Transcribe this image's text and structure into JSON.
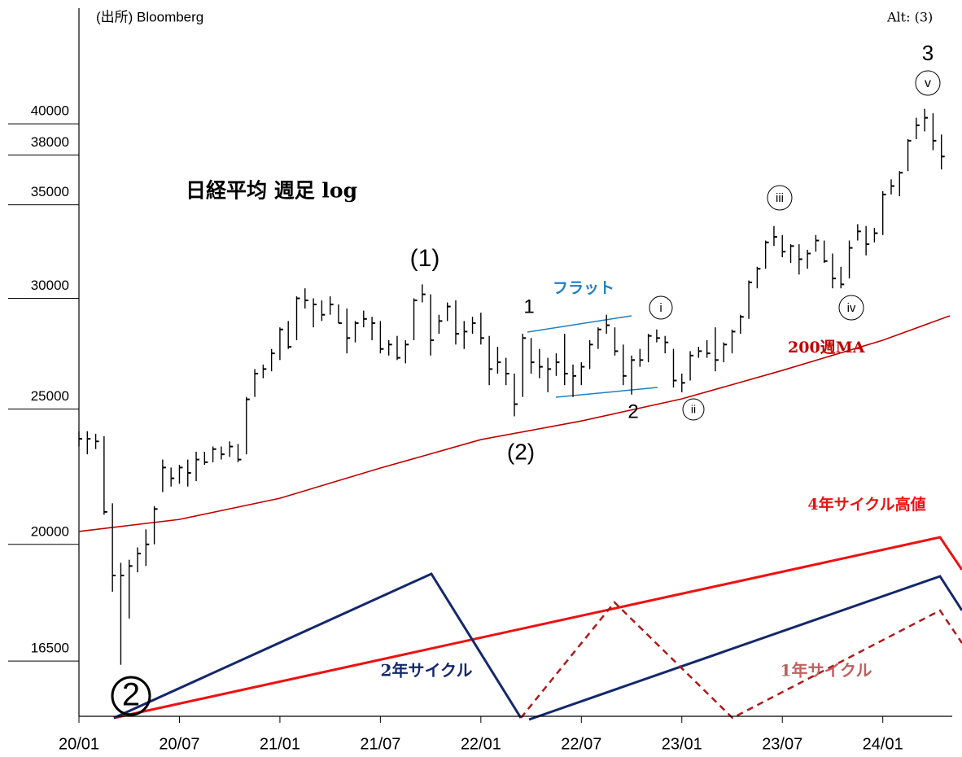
{
  "chart_data": {
    "type": "ohlc",
    "source": "(出所) Bloomberg",
    "alt_label": "Alt: (3)",
    "title": "日経平均 週足 log",
    "log_scale": true,
    "color": "#000000",
    "xlim": [
      0,
      52
    ],
    "xticks": [
      {
        "value": 0,
        "label": "20/01"
      },
      {
        "value": 6,
        "label": "20/07"
      },
      {
        "value": 12,
        "label": "21/01"
      },
      {
        "value": 18,
        "label": "21/07"
      },
      {
        "value": 24,
        "label": "22/01"
      },
      {
        "value": 30,
        "label": "22/07"
      },
      {
        "value": 36,
        "label": "23/01"
      },
      {
        "value": 42,
        "label": "23/07"
      },
      {
        "value": 48,
        "label": "24/01"
      }
    ],
    "ylim": [
      15065,
      48400
    ],
    "yticks": [
      16500,
      20000,
      25000,
      30000,
      35000,
      38000,
      40000
    ],
    "x": [
      0,
      0.5,
      1,
      1.5,
      2,
      2.5,
      3,
      3.5,
      4,
      4.5,
      5,
      5.5,
      6,
      6.5,
      7,
      7.5,
      8,
      8.5,
      9,
      9.5,
      10,
      10.5,
      11,
      11.5,
      12,
      12.5,
      13,
      13.5,
      14,
      14.5,
      15,
      15.5,
      16,
      16.5,
      17,
      17.5,
      18,
      18.5,
      19,
      19.5,
      20,
      20.5,
      21,
      21.5,
      22,
      22.5,
      23,
      23.5,
      24,
      24.5,
      25,
      25.5,
      26,
      26.5,
      27,
      27.5,
      28,
      28.5,
      29,
      29.5,
      30,
      30.5,
      31,
      31.5,
      32,
      32.5,
      33,
      33.5,
      34,
      34.5,
      35,
      35.5,
      36,
      36.5,
      37,
      37.5,
      38,
      38.5,
      39,
      39.5,
      40,
      40.5,
      41,
      41.5,
      42,
      42.5,
      43,
      43.5,
      44,
      44.5,
      45,
      45.5,
      46,
      46.5,
      47,
      47.5,
      48,
      48.5,
      49,
      49.5,
      50,
      50.5,
      51,
      51.5
    ],
    "high": [
      24100,
      24100,
      24000,
      23900,
      21400,
      19400,
      19500,
      19900,
      20500,
      21300,
      23000,
      22700,
      22800,
      23000,
      23300,
      23300,
      23500,
      23500,
      23700,
      23600,
      25500,
      26700,
      26900,
      27600,
      28600,
      28900,
      30100,
      30500,
      30000,
      29900,
      30100,
      29700,
      29500,
      28900,
      29400,
      29100,
      28900,
      28000,
      28200,
      28000,
      30000,
      30700,
      30200,
      29200,
      29800,
      29900,
      28900,
      29100,
      29300,
      28200,
      27700,
      27200,
      26500,
      28300,
      28100,
      27600,
      27200,
      27400,
      28300,
      26900,
      27000,
      28000,
      28600,
      29200,
      28600,
      27800,
      27300,
      27600,
      28300,
      28500,
      28200,
      27600,
      26500,
      27500,
      27700,
      28000,
      28600,
      27900,
      28500,
      29200,
      30900,
      31600,
      33000,
      33800,
      33300,
      32800,
      32800,
      32500,
      33300,
      33000,
      32300,
      31600,
      33000,
      33900,
      33800,
      33700,
      35800,
      36500,
      37000,
      39000,
      40400,
      41000,
      40700,
      39300
    ],
    "low": [
      23500,
      23200,
      23400,
      21000,
      18500,
      16400,
      17700,
      19100,
      19300,
      20000,
      21800,
      22000,
      22100,
      22000,
      22200,
      22800,
      22900,
      23000,
      23100,
      22900,
      23200,
      25500,
      26300,
      26600,
      27100,
      27600,
      28000,
      29500,
      28600,
      28900,
      29200,
      28800,
      27400,
      27900,
      28600,
      28000,
      27400,
      27300,
      27100,
      26950,
      28000,
      29800,
      27300,
      28300,
      28900,
      27800,
      27600,
      28300,
      27800,
      26000,
      26500,
      26000,
      24700,
      25500,
      26500,
      26300,
      25700,
      26400,
      26000,
      25500,
      26000,
      26700,
      27600,
      28300,
      27300,
      26000,
      25600,
      26800,
      27000,
      27900,
      27400,
      25900,
      25700,
      26200,
      27200,
      27200,
      26600,
      27000,
      27400,
      28300,
      29000,
      30500,
      31500,
      32700,
      32100,
      31800,
      31200,
      31500,
      32400,
      31800,
      30500,
      30500,
      31000,
      33000,
      32200,
      32900,
      33300,
      35600,
      35500,
      37000,
      39000,
      39500,
      38300,
      37100
    ],
    "close": [
      23800,
      23800,
      23700,
      21100,
      19000,
      19000,
      19300,
      19700,
      20000,
      21200,
      22700,
      22300,
      22700,
      22500,
      23000,
      22900,
      23400,
      23200,
      23500,
      23000,
      25400,
      26500,
      26700,
      27400,
      28500,
      27700,
      30000,
      29900,
      29700,
      29200,
      29700,
      28800,
      28100,
      28800,
      29000,
      28800,
      27600,
      27800,
      27200,
      27800,
      29900,
      30200,
      28000,
      28900,
      29600,
      28300,
      28400,
      28800,
      28100,
      26700,
      27000,
      26500,
      25200,
      28100,
      27000,
      26800,
      26700,
      27000,
      26500,
      26400,
      26800,
      27800,
      28500,
      28700,
      27500,
      26400,
      27100,
      27100,
      28200,
      28100,
      27900,
      26200,
      26100,
      27300,
      27500,
      27400,
      27100,
      27800,
      28400,
      29100,
      30800,
      31500,
      32900,
      33200,
      32400,
      32700,
      32000,
      32300,
      33000,
      31900,
      31000,
      30700,
      32600,
      33500,
      32800,
      33400,
      35600,
      36100,
      36900,
      38900,
      39900,
      40400,
      38900,
      37900
    ],
    "ma": {
      "name": "200週MA",
      "color": "#c00000",
      "x": [
        0,
        6,
        12,
        18,
        24,
        30,
        36,
        42,
        48,
        52
      ],
      "values": [
        20430,
        20840,
        21580,
        22680,
        23770,
        24510,
        25420,
        26640,
        28000,
        29150
      ]
    },
    "annotations": [
      "3",
      "v",
      "iii",
      "i",
      "ii",
      "iv",
      "(1)",
      "1",
      "フラット",
      "2",
      "(2)",
      "4年サイクル高値",
      "2年サイクル",
      "1年サイクル",
      "2"
    ]
  }
}
